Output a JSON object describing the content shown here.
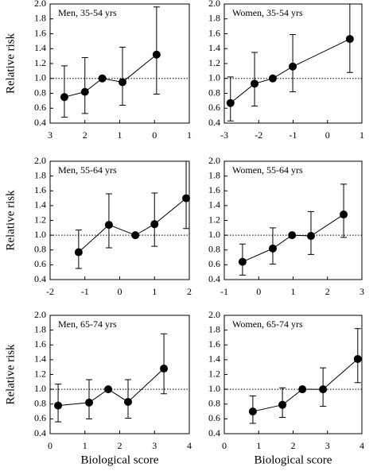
{
  "chart_data": [
    {
      "type": "scatter",
      "title": "Men, 35-54 yrs",
      "ylabel": "Relative risk",
      "series": [
        {
          "color": "#000000",
          "x": [
            -2.59,
            -2.0,
            -1.5,
            -0.92,
            0.06
          ],
          "values": [
            0.75,
            0.82,
            1.0,
            0.95,
            1.32
          ],
          "lower": [
            0.48,
            0.53,
            null,
            0.64,
            0.79
          ],
          "upper": [
            1.17,
            1.28,
            null,
            1.42,
            1.96
          ]
        }
      ],
      "xlim": [
        -3,
        1
      ],
      "xticks": [
        {
          "value": -3,
          "label": "3"
        },
        {
          "value": -2,
          "label": "2"
        },
        {
          "value": -1,
          "label": "1"
        },
        0,
        1
      ],
      "ylim": [
        0.4,
        2.0
      ],
      "yticks": [
        0.4,
        0.6,
        0.8,
        {
          "value": 1.0,
          "label": "1.0"
        },
        1.2,
        1.4,
        1.6,
        1.8,
        {
          "value": 2.0,
          "label": "2.0"
        }
      ],
      "hline": 1
    },
    {
      "type": "scatter",
      "title": "Women, 35-54 yrs",
      "series": [
        {
          "color": "#000000",
          "x": [
            -2.82,
            -2.12,
            -1.59,
            -1.01,
            0.65
          ],
          "values": [
            0.67,
            0.93,
            1.0,
            1.16,
            1.53
          ],
          "lower": [
            0.43,
            0.63,
            null,
            0.82,
            1.08
          ],
          "upper": [
            1.02,
            1.35,
            null,
            1.59,
            2.0
          ]
        }
      ],
      "xlim": [
        -3,
        1
      ],
      "xticks": [
        -3,
        -2,
        -1,
        0,
        1
      ],
      "ylim": [
        0.4,
        2.0
      ],
      "yticks": [
        0.4,
        0.6,
        0.8,
        {
          "value": 1.0,
          "label": "1.0"
        },
        1.2,
        1.4,
        1.6,
        1.8,
        {
          "value": 2.0,
          "label": "2.0"
        }
      ],
      "hline": 1
    },
    {
      "type": "scatter",
      "title": "Men, 55-64 yrs",
      "ylabel": "Relative risk",
      "series": [
        {
          "color": "#000000",
          "x": [
            -1.18,
            -0.31,
            0.45,
            1.0,
            1.91
          ],
          "values": [
            0.77,
            1.14,
            1.0,
            1.15,
            1.5
          ],
          "lower": [
            0.55,
            0.83,
            null,
            0.85,
            1.09
          ],
          "upper": [
            1.07,
            1.56,
            null,
            1.57,
            2.0
          ]
        }
      ],
      "xlim": [
        -2,
        2
      ],
      "xticks": [
        -2,
        -1,
        0,
        1,
        2
      ],
      "ylim": [
        0.4,
        2.0
      ],
      "yticks": [
        0.4,
        0.6,
        0.8,
        {
          "value": 1.0,
          "label": "1.0"
        },
        1.2,
        1.4,
        1.6,
        1.8,
        {
          "value": 2.0,
          "label": "2.0"
        }
      ],
      "hline": 1
    },
    {
      "type": "scatter",
      "title": "Women, 55-64 yrs",
      "series": [
        {
          "color": "#000000",
          "x": [
            -0.47,
            0.41,
            0.97,
            1.52,
            2.47
          ],
          "values": [
            0.64,
            0.82,
            1.0,
            0.99,
            1.28
          ],
          "lower": [
            0.46,
            0.61,
            null,
            0.74,
            0.97
          ],
          "upper": [
            0.88,
            1.1,
            null,
            1.32,
            1.69
          ]
        }
      ],
      "xlim": [
        -1,
        3
      ],
      "xticks": [
        -1,
        0,
        1,
        2,
        3
      ],
      "ylim": [
        0.4,
        2.0
      ],
      "yticks": [
        0.4,
        0.6,
        0.8,
        {
          "value": 1.0,
          "label": "1.0"
        },
        1.2,
        1.4,
        1.6,
        1.8,
        {
          "value": 2.0,
          "label": "2.0"
        }
      ],
      "hline": 1
    },
    {
      "type": "scatter",
      "title": "Men, 65-74 yrs",
      "ylabel": "Relative risk",
      "xlabel": "Biological score",
      "series": [
        {
          "color": "#000000",
          "x": [
            0.23,
            1.12,
            1.67,
            2.24,
            3.27
          ],
          "values": [
            0.78,
            0.82,
            1.0,
            0.83,
            1.28
          ],
          "lower": [
            0.56,
            0.6,
            null,
            0.61,
            0.94
          ],
          "upper": [
            1.07,
            1.13,
            null,
            1.13,
            1.75
          ]
        }
      ],
      "xlim": [
        0,
        4
      ],
      "xticks": [
        0,
        1,
        2,
        3,
        4
      ],
      "ylim": [
        0.4,
        2.0
      ],
      "yticks": [
        0.4,
        0.6,
        0.8,
        {
          "value": 1.0,
          "label": "1.0"
        },
        1.2,
        1.4,
        1.6,
        1.8,
        {
          "value": 2.0,
          "label": "2.0"
        }
      ],
      "hline": 1
    },
    {
      "type": "scatter",
      "title": "Women, 65-74 yrs",
      "xlabel": "Biological score",
      "series": [
        {
          "color": "#000000",
          "x": [
            0.83,
            1.69,
            2.27,
            2.87,
            3.88
          ],
          "values": [
            0.7,
            0.79,
            1.0,
            1.0,
            1.41
          ],
          "lower": [
            0.54,
            0.62,
            null,
            0.77,
            1.09
          ],
          "upper": [
            0.91,
            1.02,
            null,
            1.29,
            1.82
          ]
        }
      ],
      "xlim": [
        0,
        4
      ],
      "xticks": [
        0,
        1,
        2,
        3,
        4
      ],
      "ylim": [
        0.4,
        2.0
      ],
      "yticks": [
        0.4,
        0.6,
        0.8,
        {
          "value": 1.0,
          "label": "1.0"
        },
        1.2,
        1.4,
        1.6,
        1.8,
        {
          "value": 2.0,
          "label": "2.0"
        }
      ],
      "hline": 1
    }
  ]
}
